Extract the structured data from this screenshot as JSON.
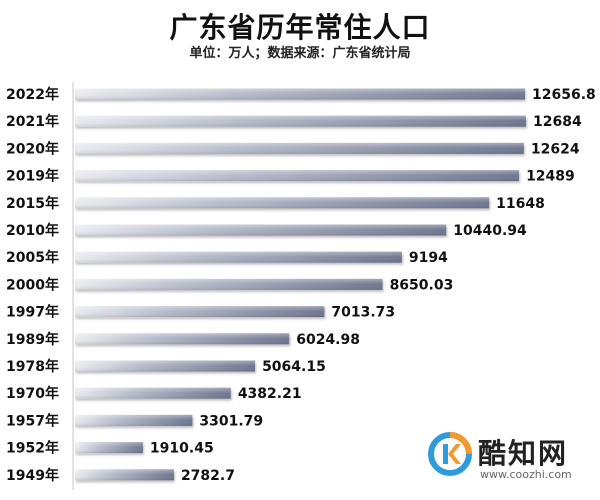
{
  "chart_data": {
    "type": "bar",
    "orientation": "horizontal",
    "title": "广东省历年常住人口",
    "subtitle": "单位：万人；数据来源：广东省统计局",
    "categories": [
      "2022年",
      "2021年",
      "2020年",
      "2019年",
      "2015年",
      "2010年",
      "2005年",
      "2000年",
      "1997年",
      "1989年",
      "1978年",
      "1970年",
      "1957年",
      "1952年",
      "1949年"
    ],
    "values": [
      12656.8,
      12684,
      12624,
      12489,
      11648,
      10440.94,
      9194,
      8650.03,
      7013.73,
      6024.98,
      5064.15,
      4382.21,
      3301.79,
      1910.45,
      2782.7
    ],
    "value_labels": [
      "12656.8",
      "12684",
      "12624",
      "12489",
      "11648",
      "10440.94",
      "9194",
      "8650.03",
      "7013.73",
      "6024.98",
      "5064.15",
      "4382.21",
      "3301.79",
      "1910.45",
      "2782.7"
    ],
    "bar_color": "#7d8499",
    "bar_highlight": "#eef0f4",
    "grid": false
  },
  "watermark": {
    "name": "酷知网",
    "url": "www.coozhi.com",
    "colors": [
      "#2d9bdc",
      "#f29a2e"
    ]
  }
}
